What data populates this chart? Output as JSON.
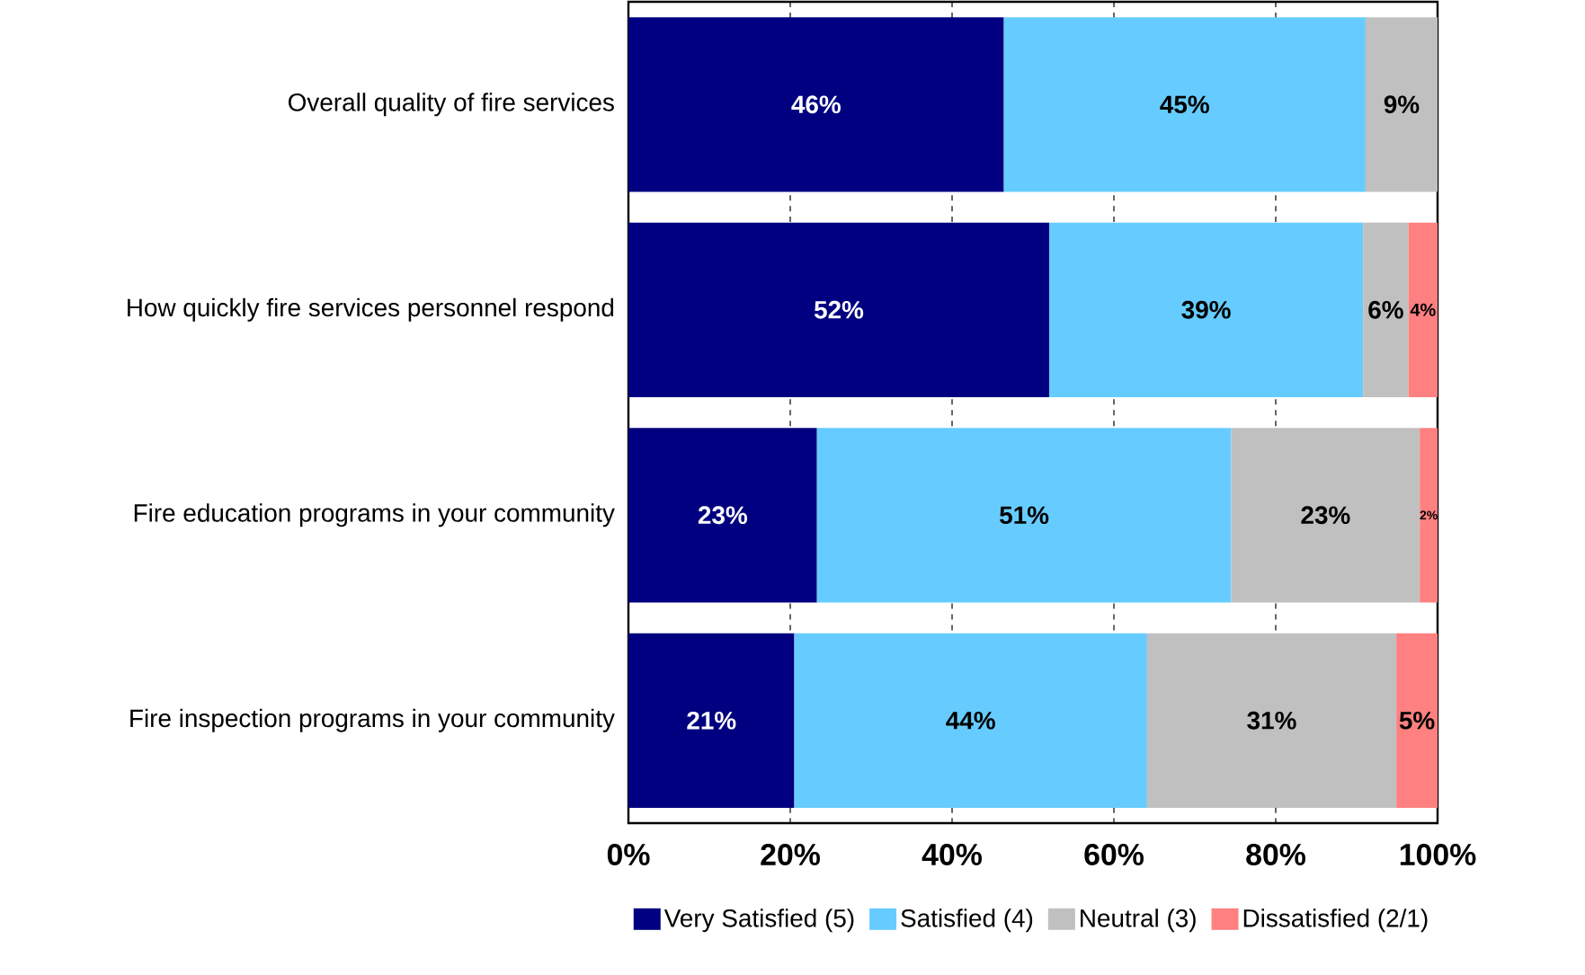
{
  "chart_data": {
    "type": "bar",
    "orientation": "horizontal",
    "stacked": true,
    "grid": "x",
    "legend": "bottom",
    "categories": [
      "Overall quality of fire services",
      "How quickly fire services personnel respond",
      "Fire education programs in your community",
      "Fire inspection programs in your community"
    ],
    "xlim": [
      0,
      100
    ],
    "xticks": [
      {
        "value": 0,
        "label": "0%"
      },
      {
        "value": 20,
        "label": "20%"
      },
      {
        "value": 40,
        "label": "40%"
      },
      {
        "value": 60,
        "label": "60%"
      },
      {
        "value": 80,
        "label": "80%"
      },
      {
        "value": 100,
        "label": "100%"
      }
    ],
    "series": [
      {
        "name": "Very Satisfied (5)",
        "color": "#000080",
        "values": [
          46.4,
          52.0,
          23.3,
          20.5
        ],
        "value_labels": [
          "46%",
          "52%",
          "23%",
          "21%"
        ]
      },
      {
        "name": "Satisfied (4)",
        "color": "#66ccff",
        "values": [
          44.7,
          38.8,
          51.2,
          43.6
        ],
        "value_labels": [
          "45%",
          "39%",
          "51%",
          "44%"
        ]
      },
      {
        "name": "Neutral (3)",
        "color": "#c0c0c0",
        "values": [
          8.9,
          5.6,
          23.3,
          30.8
        ],
        "value_labels": [
          "9%",
          "6%",
          "23%",
          "31%"
        ]
      },
      {
        "name": "Dissatisfied (2/1)",
        "color": "#ff8080",
        "values": [
          0,
          3.6,
          2.2,
          5.1
        ],
        "value_labels": [
          null,
          "4%",
          "2%",
          "5%"
        ]
      }
    ]
  }
}
